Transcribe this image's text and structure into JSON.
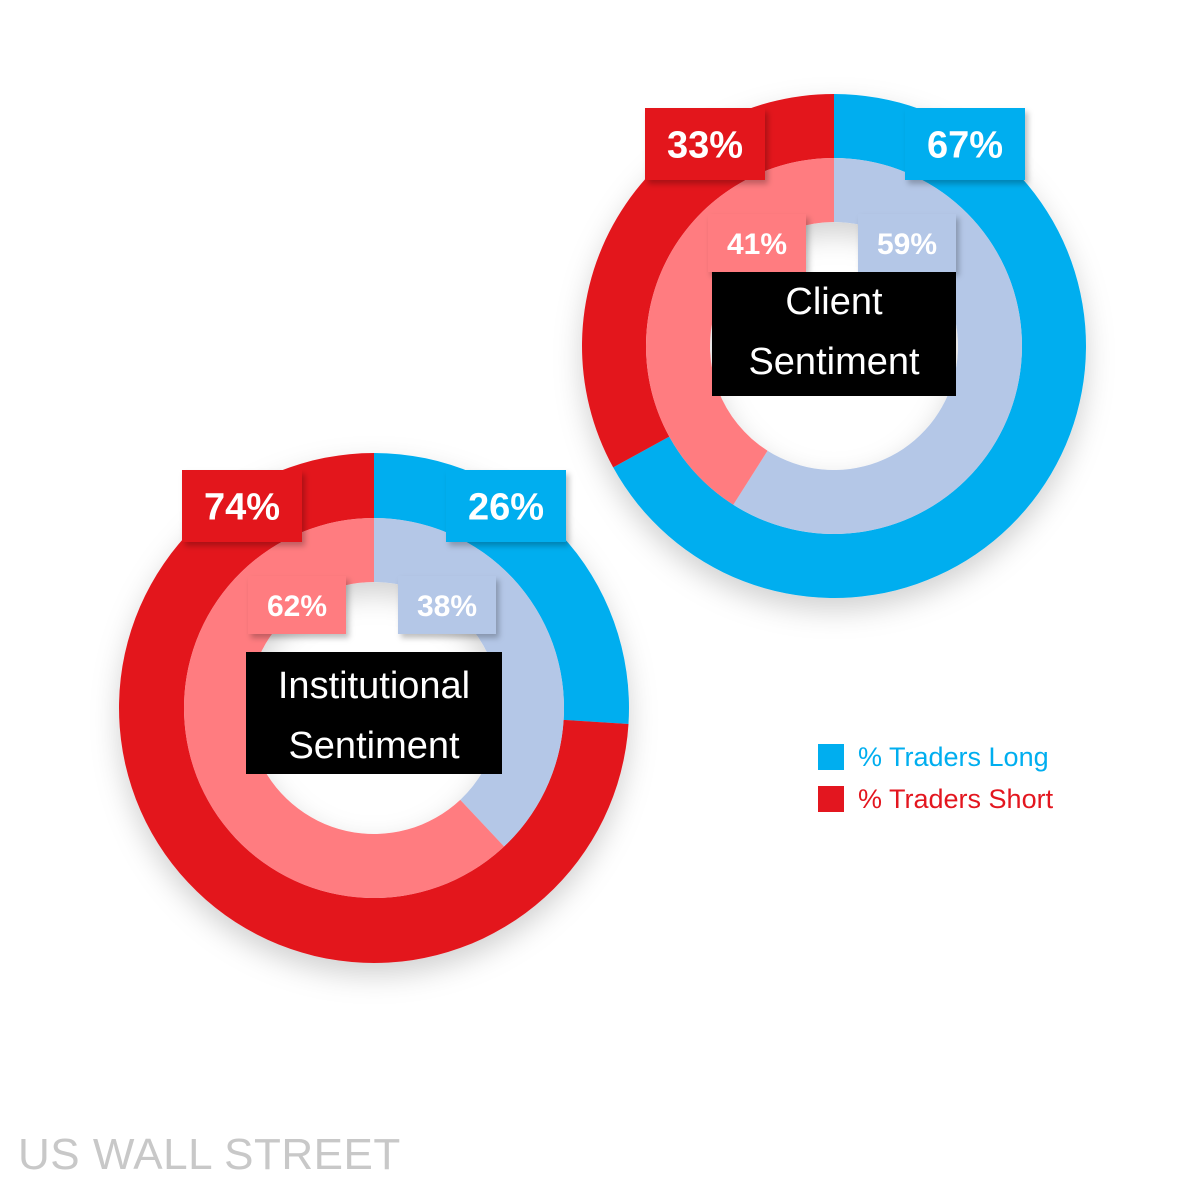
{
  "chart_data": [
    {
      "type": "pie",
      "center_label_lines": [
        "Client",
        "Sentiment"
      ],
      "outer": {
        "long": 67,
        "short": 33
      },
      "inner": {
        "long": 59,
        "short": 41
      },
      "labels": {
        "outer_long": "67%",
        "outer_short": "33%",
        "inner_long": "59%",
        "inner_short": "41%"
      }
    },
    {
      "type": "pie",
      "center_label_lines": [
        "Institutional",
        "Sentiment"
      ],
      "outer": {
        "long": 26,
        "short": 74
      },
      "inner": {
        "long": 38,
        "short": 62
      },
      "labels": {
        "outer_long": "26%",
        "outer_short": "74%",
        "inner_long": "38%",
        "inner_short": "62%"
      }
    }
  ],
  "legend": [
    {
      "label": "% Traders Long",
      "color": "#00aeef"
    },
    {
      "label": "% Traders Short",
      "color": "#e3161f"
    }
  ],
  "colors": {
    "outer_long": "#00aeef",
    "outer_short": "#e3161f",
    "inner_long": "#b4c7e7",
    "inner_short": "#ff7c80"
  },
  "watermark": "US WALL STREET"
}
